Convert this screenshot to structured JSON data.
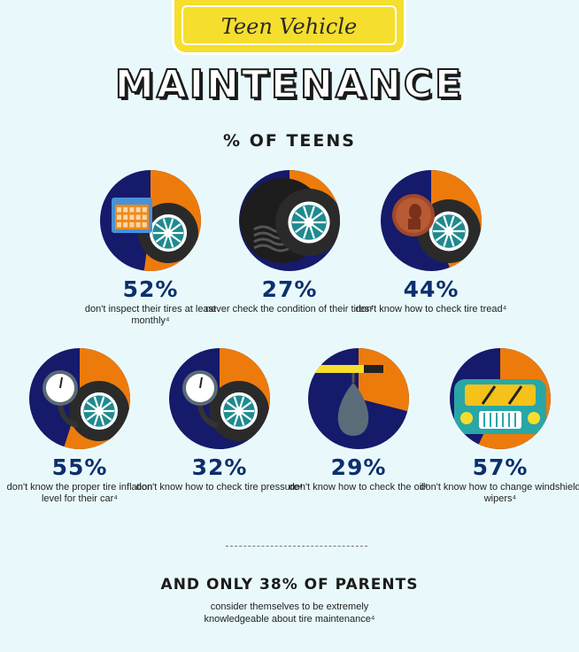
{
  "header": {
    "banner_label": "Teen Vehicle",
    "title": "MAINTENANCE",
    "subtitle": "% OF TEENS"
  },
  "colors": {
    "navy": "#151a6b",
    "orange": "#ed7b0c",
    "background": "#e9f9fb",
    "banner": "#f5de2d",
    "percent_text": "#0d2f6e"
  },
  "chart_data": {
    "type": "pie",
    "title": "% OF TEENS",
    "series": [
      {
        "label": "52%",
        "value": 52,
        "description": "don't inspect their tires at least monthly⁴",
        "icon": "calendar-tire-icon"
      },
      {
        "label": "27%",
        "value": 27,
        "description": "never check the condition of their tires⁴",
        "icon": "tire-tread-icon"
      },
      {
        "label": "44%",
        "value": 44,
        "description": "don't know how to check tire tread⁴",
        "icon": "penny-tire-icon"
      },
      {
        "label": "55%",
        "value": 55,
        "description": "don't know the proper tire inflation level for their car⁴",
        "icon": "pressure-gauge-tire-icon"
      },
      {
        "label": "32%",
        "value": 32,
        "description": "don't know how to check tire pressure⁴",
        "icon": "pressure-gauge-tire-icon"
      },
      {
        "label": "29%",
        "value": 29,
        "description": "don't know how to check the oil⁴",
        "icon": "oil-drop-icon"
      },
      {
        "label": "57%",
        "value": 57,
        "description": "don't know how to change windshield wipers⁴",
        "icon": "car-wipers-icon"
      }
    ]
  },
  "parents": {
    "title": "AND ONLY 38% OF PARENTS",
    "line1": "consider themselves to be extremely",
    "line2": "knowledgeable about tire maintenance⁴"
  }
}
